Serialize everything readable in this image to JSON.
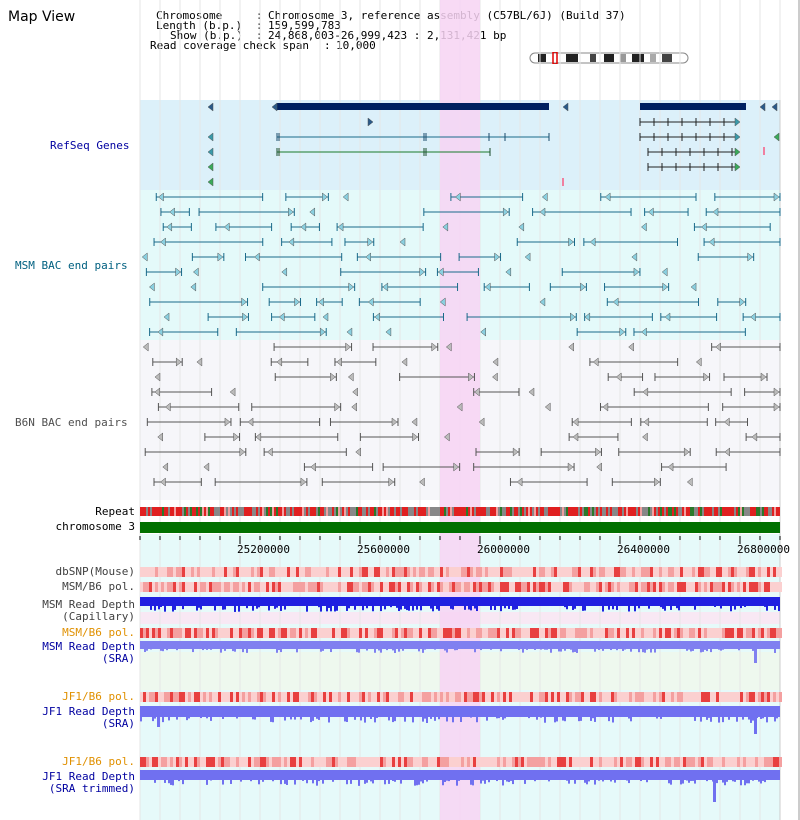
{
  "header": {
    "title": "Map View",
    "chromosome_label": "Chromosome",
    "chromosome_value": "Chromosome 3, reference assembly (C57BL/6J) (Build 37)",
    "length_label": "Length (b.p.)",
    "length_value": "159,599,783",
    "show_label": "Show (b.p.)",
    "show_value": "24,868,003-26,999,423 : 2,131,421 bp",
    "span_label": "Read coverage check span",
    "span_value": "10,000"
  },
  "tracks": {
    "refseq": "RefSeq Genes",
    "msm_bac": "MSM BAC end pairs",
    "b6n_bac": "B6N BAC end pairs",
    "repeat": "Repeat",
    "chromosome": "chromosome 3",
    "dbsnp": "dbSNP(Mouse)",
    "msm_b6_pol_1": "MSM/B6 pol.",
    "msm_read_depth_cap_1": "MSM Read Depth",
    "msm_read_depth_cap_2": "(Capillary)",
    "msm_b6_pol_2": "MSM/B6 pol.",
    "msm_read_depth_sra_1": "MSM Read Depth",
    "msm_read_depth_sra_2": "(SRA)",
    "jf1_b6_pol_1": "JF1/B6 pol.",
    "jf1_read_depth_sra_1": "JF1 Read Depth",
    "jf1_read_depth_sra_2": "(SRA)",
    "jf1_b6_pol_2": "JF1/B6 pol.",
    "jf1_read_depth_trim_1": "JF1 Read Depth",
    "jf1_read_depth_trim_2": "(SRA trimmed)"
  },
  "axis": {
    "ticks": [
      "25200000",
      "25600000",
      "26000000",
      "26400000",
      "26800000"
    ]
  },
  "colors": {
    "refseq_label": "#0000a0",
    "msm_bac_label": "#006080",
    "b6n_label": "#505050",
    "highlight": "#f7d3f3",
    "gene_dark": "#002060",
    "pol_orange": "#e09000",
    "read_blue": "#0000a0"
  }
}
